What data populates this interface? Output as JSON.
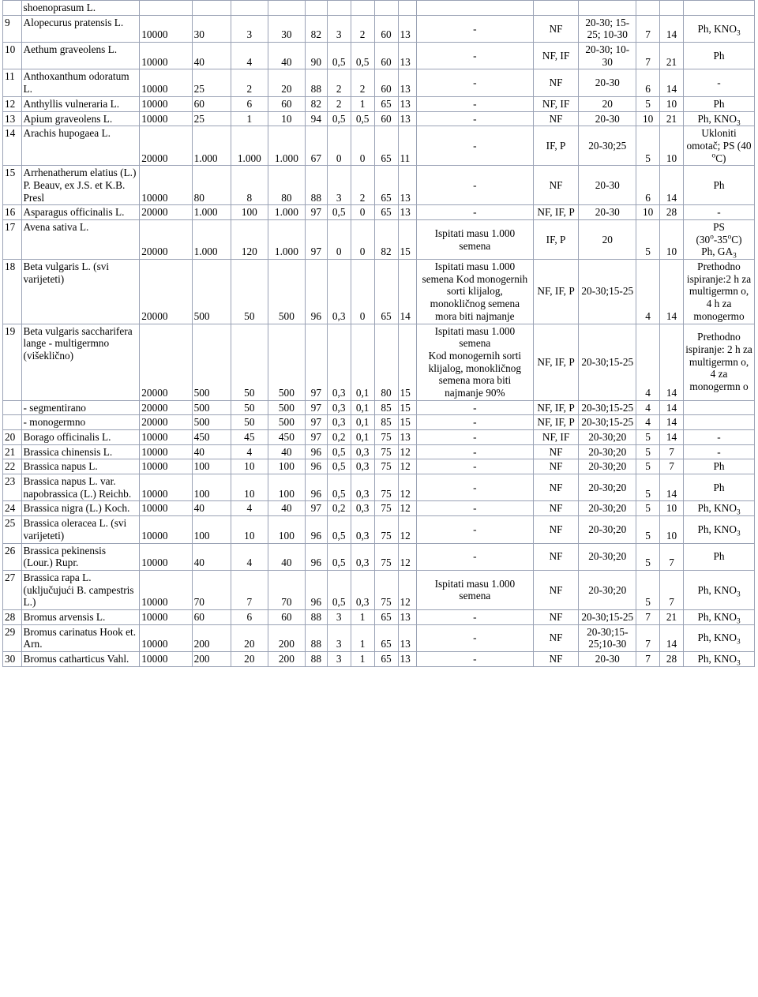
{
  "rows": [
    {
      "i": "",
      "n": "shoenoprasum L.",
      "v": [
        "",
        "",
        "",
        "",
        "",
        "",
        "",
        "",
        "",
        "",
        "",
        "",
        "",
        "",
        ""
      ]
    },
    {
      "i": "9",
      "n": "Alopecurus pratensis L.",
      "v": [
        "10000",
        "30",
        "3",
        "30",
        "82",
        "3",
        "2",
        "60",
        "13",
        "-",
        "NF",
        "20-30; 15-25; 10-30",
        "7",
        "14",
        "Ph, KNO<sub>3</sub>"
      ]
    },
    {
      "i": "10",
      "n": "Aethum graveolens L.",
      "v": [
        "10000",
        "40",
        "4",
        "40",
        "90",
        "0,5",
        "0,5",
        "60",
        "13",
        "-",
        "NF, IF",
        "20-30; 10-30",
        "7",
        "21",
        "Ph"
      ]
    },
    {
      "i": "11",
      "n": "Anthoxanthum odoratum L.",
      "v": [
        "10000",
        "25",
        "2",
        "20",
        "88",
        "2",
        "2",
        "60",
        "13",
        "-",
        "NF",
        "20-30",
        "6",
        "14",
        "-"
      ]
    },
    {
      "i": "12",
      "n": "Anthyllis vulneraria L.",
      "v": [
        "10000",
        "60",
        "6",
        "60",
        "82",
        "2",
        "1",
        "65",
        "13",
        "-",
        "NF, IF",
        "20",
        "5",
        "10",
        "Ph"
      ]
    },
    {
      "i": "13",
      "n": "Apium graveolens L.",
      "v": [
        "10000",
        "25",
        "1",
        "10",
        "94",
        "0,5",
        "0,5",
        "60",
        "13",
        "-",
        "NF",
        "20-30",
        "10",
        "21",
        "Ph, KNO<sub>3</sub>"
      ]
    },
    {
      "i": "14",
      "n": "Arachis hupogaea L.",
      "v": [
        "20000",
        "1.000",
        "1.000",
        "1.000",
        "67",
        "0",
        "0",
        "65",
        "11",
        "-",
        "IF, P",
        "20-30;25",
        "5",
        "10",
        "Ukloniti omotač; PS (40 <sup>o</sup>C)"
      ]
    },
    {
      "i": "15",
      "n": "Arrhenatherum elatius (L.) P. Beauv, ex J.S. et K.B. Presl",
      "v": [
        "10000",
        "80",
        "8",
        "80",
        "88",
        "3",
        "2",
        "65",
        "13",
        "-",
        "NF",
        "20-30",
        "6",
        "14",
        "Ph"
      ]
    },
    {
      "i": "16",
      "n": "Asparagus officinalis L.",
      "v": [
        "20000",
        "1.000",
        "100",
        "1.000",
        "97",
        "0,5",
        "0",
        "65",
        "13",
        "-",
        "NF, IF, P",
        "20-30",
        "10",
        "28",
        "-"
      ]
    },
    {
      "i": "17",
      "n": "Avena sativa L.",
      "v": [
        "20000",
        "1.000",
        "120",
        "1.000",
        "97",
        "0",
        "0",
        "82",
        "15",
        "Ispitati masu 1.000 semena",
        "IF, P",
        "20",
        "5",
        "10",
        "PS<br>(30<sup>o</sup>-35<sup>o</sup>C)<br>Ph, GA<sub>3</sub>"
      ]
    },
    {
      "i": "18",
      "n": "Beta vulgaris L. (svi varijeteti)",
      "v": [
        "20000",
        "500",
        "50",
        "500",
        "96",
        "0,3",
        "0",
        "65",
        "14",
        "Ispitati masu 1.000 semena Kod monogernih sorti klijalog, monokličnog semena mora biti najmanje",
        "NF, IF, P",
        "20-30;15-25",
        "4",
        "14",
        "Prethodno ispiranje:2 h za multigermn o, 4 h za monogermo"
      ]
    },
    {
      "i": "19",
      "n": "Beta vulgaris saccharifera lange - multigermno (višeklično)",
      "v": [
        "20000",
        "500",
        "50",
        "500",
        "97",
        "0,3",
        "0,1",
        "80",
        "15",
        "Ispitati masu 1.000 semena<br>Kod monogernih sorti klijalog, monokličnog semena mora biti najmanje 90%",
        "NF, IF, P",
        "20-30;15-25",
        "4",
        "14",
        "Prethodno ispiranje: 2 h za multigermn o, 4 za monogermn o"
      ]
    },
    {
      "i": "",
      "n": "- segmentirano",
      "v": [
        "20000",
        "500",
        "50",
        "500",
        "97",
        "0,3",
        "0,1",
        "85",
        "15",
        "-",
        "NF, IF, P",
        "20-30;15-25",
        "4",
        "14",
        ""
      ]
    },
    {
      "i": "",
      "n": "- monogermno",
      "v": [
        "20000",
        "500",
        "50",
        "500",
        "97",
        "0,3",
        "0,1",
        "85",
        "15",
        "-",
        "NF, IF, P",
        "20-30;15-25",
        "4",
        "14",
        ""
      ]
    },
    {
      "i": "20",
      "n": "Borago officinalis L.",
      "v": [
        "10000",
        "450",
        "45",
        "450",
        "97",
        "0,2",
        "0,1",
        "75",
        "13",
        "-",
        "NF, IF",
        "20-30;20",
        "5",
        "14",
        "-"
      ]
    },
    {
      "i": "21",
      "n": "Brassica chinensis L.",
      "v": [
        "10000",
        "40",
        "4",
        "40",
        "96",
        "0,5",
        "0,3",
        "75",
        "12",
        "-",
        "NF",
        "20-30;20",
        "5",
        "7",
        "-"
      ]
    },
    {
      "i": "22",
      "n": "Brassica napus L.",
      "v": [
        "10000",
        "100",
        "10",
        "100",
        "96",
        "0,5",
        "0,3",
        "75",
        "12",
        "-",
        "NF",
        "20-30;20",
        "5",
        "7",
        "Ph"
      ]
    },
    {
      "i": "23",
      "n": "Brassica napus L. var.<br>napobrassica (L.) Reichb.",
      "v": [
        "10000",
        "100",
        "10",
        "100",
        "96",
        "0,5",
        "0,3",
        "75",
        "12",
        "-",
        "NF",
        "20-30;20",
        "5",
        "14",
        "Ph"
      ]
    },
    {
      "i": "24",
      "n": "Brassica nigra (L.) Koch.",
      "v": [
        "10000",
        "40",
        "4",
        "40",
        "97",
        "0,2",
        "0,3",
        "75",
        "12",
        "-",
        "NF",
        "20-30;20",
        "5",
        "10",
        "Ph, KNO<sub>3</sub>"
      ]
    },
    {
      "i": "25",
      "n": "Brassica oleracea L. (svi<br>varijeteti)",
      "v": [
        "10000",
        "100",
        "10",
        "100",
        "96",
        "0,5",
        "0,3",
        "75",
        "12",
        "-",
        "NF",
        "20-30;20",
        "5",
        "10",
        "Ph, KNO<sub>3</sub>"
      ]
    },
    {
      "i": "26",
      "n": "Brassica pekinensis (Lour.) Rupr.",
      "v": [
        "10000",
        "40",
        "4",
        "40",
        "96",
        "0,5",
        "0,3",
        "75",
        "12",
        "-",
        "NF",
        "20-30;20",
        "5",
        "7",
        "Ph"
      ]
    },
    {
      "i": "27",
      "n": "Brassica rapa L. (uključujući B. campestris L.)",
      "v": [
        "10000",
        "70",
        "7",
        "70",
        "96",
        "0,5",
        "0,3",
        "75",
        "12",
        "Ispitati masu 1.000 semena",
        "NF",
        "20-30;20",
        "5",
        "7",
        "Ph, KNO<sub>3</sub>"
      ]
    },
    {
      "i": "28",
      "n": "Bromus arvensis L.",
      "v": [
        "10000",
        "60",
        "6",
        "60",
        "88",
        "3",
        "1",
        "65",
        "13",
        "-",
        "NF",
        "20-30;15-25",
        "7",
        "21",
        "Ph, KNO<sub>3</sub>"
      ]
    },
    {
      "i": "29",
      "n": "Bromus carinatus Hook et. Arn.",
      "v": [
        "10000",
        "200",
        "20",
        "200",
        "88",
        "3",
        "1",
        "65",
        "13",
        "-",
        "NF",
        "20-30;15-25;10-30",
        "7",
        "14",
        "Ph, KNO<sub>3</sub>"
      ]
    },
    {
      "i": "30",
      "n": "Bromus catharticus Vahl.",
      "v": [
        "10000",
        "200",
        "20",
        "200",
        "88",
        "3",
        "1",
        "65",
        "13",
        "-",
        "NF",
        "20-30",
        "7",
        "28",
        "Ph, KNO<sub>3</sub>"
      ]
    }
  ]
}
